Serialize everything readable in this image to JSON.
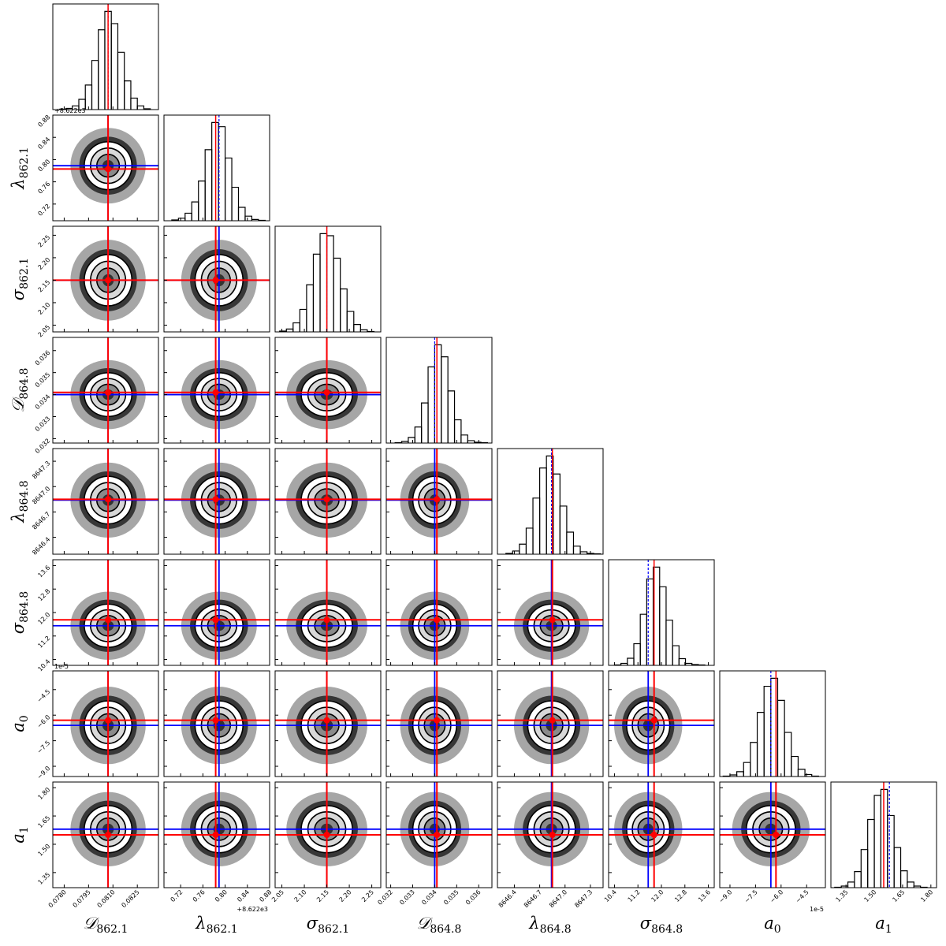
{
  "chart_data": {
    "type": "corner",
    "parameters": [
      {
        "symbol": "𝒟",
        "subscript": "862.1",
        "lim": [
          0.0773,
          0.0838
        ],
        "ticks": [
          {
            "value": 0.078,
            "label": "0.0780"
          },
          0.0795,
          {
            "value": 0.081,
            "label": "0.0810"
          },
          0.0825
        ],
        "truth": 0.0807,
        "estimate": 0.0807,
        "bins": [
          0.0777,
          0.0781,
          0.0785,
          0.0789,
          0.0793,
          0.0797,
          0.0801,
          0.0805,
          0.0809,
          0.0813,
          0.0817,
          0.0821,
          0.0825,
          0.0829,
          0.0833
        ],
        "counts": [
          1,
          3,
          9,
          25,
          60,
          120,
          195,
          240,
          210,
          140,
          70,
          28,
          9,
          2
        ]
      },
      {
        "symbol": "λ",
        "subscript": "862.1",
        "lim": [
          0.69,
          0.88
        ],
        "offset": "+8.622e3",
        "ticks": [
          0.72,
          0.76,
          {
            "value": 0.8,
            "label": "0.80"
          },
          0.84,
          0.88
        ],
        "truth": 0.783,
        "estimate": 0.789,
        "bins": [
          0.704,
          0.716,
          0.728,
          0.74,
          0.752,
          0.764,
          0.776,
          0.788,
          0.8,
          0.812,
          0.824,
          0.836,
          0.848,
          0.86,
          0.872
        ],
        "counts": [
          2,
          6,
          18,
          45,
          95,
          170,
          235,
          225,
          150,
          80,
          32,
          11,
          3,
          1
        ]
      },
      {
        "symbol": "σ",
        "subscript": "862.1",
        "lim": [
          2.035,
          2.27
        ],
        "ticks": [
          2.05,
          {
            "value": 2.1,
            "label": "2.10"
          },
          2.15,
          {
            "value": 2.2,
            "label": "2.20"
          },
          2.25
        ],
        "truth": 2.15,
        "estimate": 2.15,
        "bins": [
          2.045,
          2.06,
          2.075,
          2.09,
          2.105,
          2.12,
          2.135,
          2.15,
          2.165,
          2.18,
          2.195,
          2.21,
          2.225,
          2.24,
          2.255
        ],
        "counts": [
          2,
          7,
          22,
          55,
          115,
          190,
          240,
          235,
          180,
          105,
          50,
          18,
          5,
          1
        ]
      },
      {
        "symbol": "𝒟",
        "subscript": "864.8",
        "lim": [
          0.0318,
          0.0366
        ],
        "ticks": [
          0.032,
          0.033,
          0.034,
          0.035,
          0.036
        ],
        "truth": 0.0341,
        "estimate": 0.034,
        "bins": [
          0.0322,
          0.0325,
          0.0328,
          0.0331,
          0.0334,
          0.0337,
          0.034,
          0.0343,
          0.0346,
          0.0349,
          0.0352,
          0.0355,
          0.0358,
          0.0361,
          0.0364
        ],
        "counts": [
          1,
          4,
          14,
          40,
          100,
          190,
          245,
          215,
          130,
          58,
          20,
          6,
          2,
          1
        ]
      },
      {
        "symbol": "λ",
        "subscript": "864.8",
        "lim": [
          8646.2,
          8647.45
        ],
        "ticks": [
          8646.4,
          8646.7,
          {
            "value": 8647,
            "label": "8647.0"
          },
          8647.3
        ],
        "truth": 8646.85,
        "estimate": 8646.84,
        "bins": [
          8646.3,
          8646.38,
          8646.46,
          8646.54,
          8646.62,
          8646.7,
          8646.78,
          8646.86,
          8646.94,
          8647.02,
          8647.1,
          8647.18,
          8647.26,
          8647.34,
          8647.42
        ],
        "counts": [
          2,
          8,
          25,
          65,
          140,
          215,
          245,
          200,
          120,
          55,
          20,
          6,
          2,
          1
        ]
      },
      {
        "symbol": "σ",
        "subscript": "864.8",
        "lim": [
          10.2,
          13.8
        ],
        "ticks": [
          10.4,
          11.2,
          {
            "value": 12,
            "label": "12.0"
          },
          12.8,
          13.6
        ],
        "truth": 11.75,
        "estimate": 11.55,
        "bins": [
          10.4,
          10.62,
          10.84,
          11.06,
          11.28,
          11.5,
          11.72,
          11.94,
          12.16,
          12.38,
          12.6,
          12.82,
          13.04,
          13.26,
          13.48
        ],
        "counts": [
          1,
          5,
          18,
          55,
          130,
          220,
          250,
          200,
          115,
          50,
          17,
          5,
          2,
          1
        ]
      },
      {
        "symbol": "a",
        "subscript": "0",
        "lim": [
          -9.6,
          -3.4
        ],
        "offset": "1e-5",
        "ticks": [
          {
            "value": -9,
            "label": "−9.0"
          },
          {
            "value": -7.5,
            "label": "−7.5"
          },
          {
            "value": -6,
            "label": "−6.0"
          },
          {
            "value": -4.5,
            "label": "−4.5"
          }
        ],
        "truth": -6.3,
        "estimate": -6.6,
        "bins": [
          -9.4,
          -9.0,
          -8.6,
          -8.2,
          -7.8,
          -7.4,
          -7.0,
          -6.6,
          -6.2,
          -5.8,
          -5.4,
          -5.0,
          -4.6,
          -4.2,
          -3.8
        ],
        "counts": [
          1,
          4,
          12,
          35,
          85,
          160,
          225,
          245,
          190,
          110,
          50,
          18,
          5,
          1
        ]
      },
      {
        "symbol": "a",
        "subscript": "1",
        "lim": [
          1.27,
          1.83
        ],
        "ticks": [
          1.35,
          {
            "value": 1.5,
            "label": "1.50"
          },
          1.65,
          {
            "value": 1.8,
            "label": "1.80"
          }
        ],
        "truth": 1.55,
        "estimate": 1.58,
        "bins": [
          1.29,
          1.325,
          1.36,
          1.395,
          1.43,
          1.465,
          1.5,
          1.535,
          1.57,
          1.605,
          1.64,
          1.675,
          1.71,
          1.745,
          1.78
        ],
        "counts": [
          1,
          4,
          14,
          40,
          95,
          170,
          230,
          245,
          180,
          100,
          42,
          14,
          4,
          1
        ]
      }
    ],
    "truth_color": "#ff0000",
    "estimate_color": "#0000ff"
  }
}
